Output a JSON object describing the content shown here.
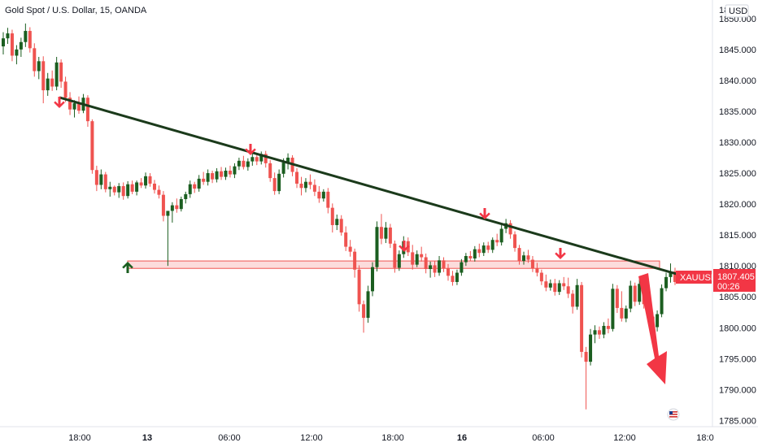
{
  "header": {
    "title": "Gold Spot / U.S. Dollar, 15, OANDA",
    "currency": "USD"
  },
  "price_axis": {
    "top_label": "18",
    "ticks": [
      "1850.000",
      "1845.000",
      "1840.000",
      "1835.000",
      "1830.000",
      "1825.000",
      "1820.000",
      "1815.000",
      "1810.000",
      "1805.000",
      "1800.000",
      "1795.000",
      "1790.000",
      "1785.000"
    ]
  },
  "time_axis": {
    "ticks": [
      "18:00",
      "13",
      "06:00",
      "12:00",
      "18:00",
      "16",
      "06:00",
      "12:00",
      "18:0"
    ]
  },
  "badges": {
    "symbol": "XAUUSD",
    "price": "1807.405",
    "countdown": "00:26"
  },
  "colors": {
    "up": "#26a69a",
    "down": "#ef5350",
    "bull_body": "#1b5e20",
    "trendline": "#1b3a1b",
    "zone": "#f8bcbc",
    "arrow_red": "#f23645",
    "arrow_green": "#1b5e20",
    "badge_red": "#f23645"
  },
  "chart_data": {
    "type": "candlestick",
    "instrument": "XAUUSD",
    "timeframe": "15",
    "ylim": [
      1784,
      1853
    ],
    "x_ticks": [
      "18:00",
      "13",
      "06:00",
      "12:00",
      "18:00",
      "16",
      "06:00",
      "12:00",
      "18:0"
    ],
    "resistance_zone": [
      1809.6,
      1810.8
    ],
    "trendline": {
      "from": {
        "x": "12 16:15",
        "y": 1837.2
      },
      "to": {
        "x": "16 16:00",
        "y": 1808.4
      }
    },
    "last_price": 1807.405,
    "candles": [
      [
        1845.5,
        1847.8,
        1844.2,
        1846.8
      ],
      [
        1846.8,
        1848.5,
        1845.9,
        1847.6
      ],
      [
        1847.6,
        1848.2,
        1843.1,
        1844.0
      ],
      [
        1844.0,
        1845.7,
        1842.6,
        1845.0
      ],
      [
        1845.0,
        1846.9,
        1843.8,
        1846.2
      ],
      [
        1846.2,
        1849.2,
        1845.4,
        1848.0
      ],
      [
        1848.0,
        1848.6,
        1844.5,
        1845.2
      ],
      [
        1845.2,
        1846.0,
        1840.6,
        1841.5
      ],
      [
        1841.5,
        1843.8,
        1840.2,
        1843.1
      ],
      [
        1843.1,
        1843.9,
        1836.3,
        1838.4
      ],
      [
        1838.4,
        1841.2,
        1837.5,
        1840.3
      ],
      [
        1840.3,
        1841.6,
        1838.3,
        1839.0
      ],
      [
        1839.0,
        1843.8,
        1838.4,
        1842.9
      ],
      [
        1842.9,
        1843.4,
        1838.8,
        1839.8
      ],
      [
        1839.8,
        1840.6,
        1836.5,
        1837.2
      ],
      [
        1837.2,
        1838.1,
        1834.4,
        1835.3
      ],
      [
        1835.3,
        1836.8,
        1834.0,
        1836.3
      ],
      [
        1836.3,
        1837.4,
        1834.6,
        1835.1
      ],
      [
        1835.1,
        1837.8,
        1834.7,
        1837.2
      ],
      [
        1837.2,
        1837.6,
        1832.5,
        1833.4
      ],
      [
        1833.4,
        1833.7,
        1824.9,
        1825.5
      ],
      [
        1825.5,
        1826.2,
        1822.1,
        1823.1
      ],
      [
        1823.1,
        1825.6,
        1822.4,
        1824.8
      ],
      [
        1824.8,
        1825.2,
        1821.9,
        1822.4
      ],
      [
        1822.4,
        1823.6,
        1821.2,
        1822.8
      ],
      [
        1822.8,
        1823.0,
        1821.4,
        1821.9
      ],
      [
        1821.9,
        1823.4,
        1821.0,
        1822.9
      ],
      [
        1822.9,
        1823.5,
        1820.7,
        1821.3
      ],
      [
        1821.3,
        1823.7,
        1820.9,
        1823.2
      ],
      [
        1823.2,
        1823.8,
        1821.6,
        1822.0
      ],
      [
        1822.0,
        1823.8,
        1821.4,
        1823.5
      ],
      [
        1823.5,
        1824.2,
        1822.6,
        1823.0
      ],
      [
        1823.0,
        1825.1,
        1822.5,
        1824.5
      ],
      [
        1824.5,
        1825.0,
        1822.8,
        1823.3
      ],
      [
        1823.3,
        1823.9,
        1821.7,
        1822.3
      ],
      [
        1822.3,
        1823.0,
        1820.9,
        1821.5
      ],
      [
        1821.5,
        1822.1,
        1817.2,
        1818.1
      ],
      [
        1818.1,
        1818.5,
        1810.0,
        1818.9
      ],
      [
        1818.9,
        1820.3,
        1817.0,
        1819.8
      ],
      [
        1819.8,
        1820.9,
        1818.6,
        1819.2
      ],
      [
        1819.2,
        1821.2,
        1818.8,
        1820.8
      ],
      [
        1820.8,
        1822.0,
        1820.1,
        1821.6
      ],
      [
        1821.6,
        1823.8,
        1821.0,
        1823.2
      ],
      [
        1823.2,
        1823.6,
        1821.8,
        1822.5
      ],
      [
        1822.5,
        1824.7,
        1822.0,
        1824.1
      ],
      [
        1824.1,
        1825.2,
        1823.1,
        1823.6
      ],
      [
        1823.6,
        1825.6,
        1823.0,
        1825.0
      ],
      [
        1825.0,
        1825.4,
        1823.4,
        1824.0
      ],
      [
        1824.0,
        1825.8,
        1823.5,
        1825.3
      ],
      [
        1825.3,
        1826.0,
        1823.9,
        1824.4
      ],
      [
        1824.4,
        1825.9,
        1823.9,
        1825.4
      ],
      [
        1825.4,
        1826.2,
        1824.3,
        1824.8
      ],
      [
        1824.8,
        1826.6,
        1824.2,
        1826.1
      ],
      [
        1826.1,
        1827.5,
        1825.5,
        1827.0
      ],
      [
        1827.0,
        1827.8,
        1825.6,
        1826.0
      ],
      [
        1826.0,
        1827.4,
        1825.4,
        1826.9
      ],
      [
        1826.9,
        1828.2,
        1826.2,
        1827.6
      ],
      [
        1827.6,
        1828.0,
        1826.3,
        1826.9
      ],
      [
        1826.9,
        1828.5,
        1826.4,
        1828.1
      ],
      [
        1828.1,
        1828.6,
        1825.9,
        1826.6
      ],
      [
        1826.6,
        1827.1,
        1823.6,
        1824.2
      ],
      [
        1824.2,
        1825.1,
        1821.5,
        1822.1
      ],
      [
        1822.1,
        1825.6,
        1821.6,
        1824.9
      ],
      [
        1824.9,
        1827.4,
        1824.3,
        1826.7
      ],
      [
        1826.7,
        1828.2,
        1825.6,
        1827.5
      ],
      [
        1827.5,
        1827.9,
        1824.5,
        1825.2
      ],
      [
        1825.2,
        1825.8,
        1822.6,
        1823.3
      ],
      [
        1823.3,
        1824.4,
        1821.4,
        1822.6
      ],
      [
        1822.6,
        1824.2,
        1821.9,
        1823.6
      ],
      [
        1823.6,
        1824.8,
        1822.4,
        1823.1
      ],
      [
        1823.1,
        1824.0,
        1821.3,
        1822.0
      ],
      [
        1822.0,
        1822.9,
        1820.2,
        1820.9
      ],
      [
        1820.9,
        1822.4,
        1820.4,
        1822.0
      ],
      [
        1822.0,
        1822.6,
        1818.5,
        1819.4
      ],
      [
        1819.4,
        1820.1,
        1815.4,
        1816.6
      ],
      [
        1816.6,
        1818.3,
        1815.8,
        1817.6
      ],
      [
        1817.6,
        1818.2,
        1814.9,
        1815.4
      ],
      [
        1815.4,
        1816.4,
        1812.4,
        1813.1
      ],
      [
        1813.1,
        1814.2,
        1811.5,
        1812.3
      ],
      [
        1812.3,
        1812.8,
        1808.1,
        1809.4
      ],
      [
        1809.4,
        1810.1,
        1802.6,
        1803.8
      ],
      [
        1803.8,
        1804.4,
        1799.2,
        1801.6
      ],
      [
        1801.6,
        1806.8,
        1800.8,
        1805.9
      ],
      [
        1805.9,
        1810.6,
        1805.1,
        1809.8
      ],
      [
        1809.8,
        1817.2,
        1809.1,
        1816.3
      ],
      [
        1816.3,
        1818.4,
        1813.5,
        1814.4
      ],
      [
        1814.4,
        1817.1,
        1813.7,
        1816.2
      ],
      [
        1816.2,
        1816.8,
        1812.9,
        1813.6
      ],
      [
        1813.6,
        1814.1,
        1808.9,
        1809.7
      ],
      [
        1809.7,
        1812.5,
        1809.2,
        1811.9
      ],
      [
        1811.9,
        1814.8,
        1811.3,
        1814.0
      ],
      [
        1814.0,
        1814.6,
        1811.6,
        1812.2
      ],
      [
        1812.2,
        1813.4,
        1809.4,
        1810.2
      ],
      [
        1810.2,
        1812.5,
        1809.8,
        1811.9
      ],
      [
        1811.9,
        1813.1,
        1810.7,
        1811.4
      ],
      [
        1811.4,
        1812.0,
        1808.8,
        1809.5
      ],
      [
        1809.5,
        1810.7,
        1808.1,
        1810.1
      ],
      [
        1810.1,
        1810.8,
        1808.2,
        1808.9
      ],
      [
        1808.9,
        1811.6,
        1808.4,
        1810.9
      ],
      [
        1810.9,
        1811.4,
        1809.0,
        1809.6
      ],
      [
        1809.6,
        1810.3,
        1807.6,
        1808.4
      ],
      [
        1808.4,
        1809.2,
        1806.8,
        1807.4
      ],
      [
        1807.4,
        1809.4,
        1806.9,
        1808.9
      ],
      [
        1808.9,
        1811.1,
        1808.4,
        1810.6
      ],
      [
        1810.6,
        1812.1,
        1810.0,
        1811.6
      ],
      [
        1811.6,
        1812.4,
        1810.8,
        1811.2
      ],
      [
        1811.2,
        1813.2,
        1810.7,
        1812.7
      ],
      [
        1812.7,
        1813.6,
        1811.4,
        1812.1
      ],
      [
        1812.1,
        1813.8,
        1811.6,
        1813.3
      ],
      [
        1813.3,
        1813.9,
        1812.1,
        1812.6
      ],
      [
        1812.6,
        1814.6,
        1812.1,
        1814.2
      ],
      [
        1814.2,
        1815.2,
        1813.2,
        1813.8
      ],
      [
        1813.8,
        1816.6,
        1813.3,
        1816.0
      ],
      [
        1816.0,
        1817.6,
        1815.3,
        1816.9
      ],
      [
        1816.9,
        1817.4,
        1814.4,
        1815.1
      ],
      [
        1815.1,
        1815.6,
        1812.3,
        1812.9
      ],
      [
        1812.9,
        1813.4,
        1810.2,
        1810.8
      ],
      [
        1810.8,
        1812.3,
        1810.2,
        1811.7
      ],
      [
        1811.7,
        1812.6,
        1810.5,
        1811.0
      ],
      [
        1811.0,
        1811.6,
        1809.0,
        1809.6
      ],
      [
        1809.6,
        1810.5,
        1808.3,
        1808.9
      ],
      [
        1808.9,
        1809.4,
        1806.9,
        1807.5
      ],
      [
        1807.5,
        1808.6,
        1805.9,
        1806.5
      ],
      [
        1806.5,
        1807.8,
        1806.0,
        1807.2
      ],
      [
        1807.2,
        1807.9,
        1805.2,
        1805.8
      ],
      [
        1805.8,
        1807.7,
        1805.3,
        1807.2
      ],
      [
        1807.2,
        1808.2,
        1806.1,
        1806.7
      ],
      [
        1806.7,
        1808.1,
        1804.8,
        1805.5
      ],
      [
        1805.5,
        1806.1,
        1802.3,
        1803.4
      ],
      [
        1803.4,
        1807.9,
        1802.9,
        1806.9
      ],
      [
        1806.9,
        1807.4,
        1795.2,
        1796.1
      ],
      [
        1796.1,
        1796.9,
        1786.8,
        1794.5
      ],
      [
        1794.5,
        1799.8,
        1793.9,
        1798.9
      ],
      [
        1798.9,
        1800.4,
        1797.5,
        1799.6
      ],
      [
        1799.6,
        1800.2,
        1798.2,
        1798.9
      ],
      [
        1798.9,
        1800.9,
        1798.3,
        1800.3
      ],
      [
        1800.3,
        1801.5,
        1799.1,
        1799.8
      ],
      [
        1799.8,
        1807.1,
        1799.4,
        1806.3
      ],
      [
        1806.3,
        1806.9,
        1802.4,
        1803.2
      ],
      [
        1803.2,
        1805.9,
        1801.0,
        1801.5
      ],
      [
        1801.5,
        1803.6,
        1800.9,
        1803.1
      ],
      [
        1803.1,
        1807.6,
        1802.5,
        1806.8
      ],
      [
        1806.8,
        1807.3,
        1803.5,
        1804.2
      ],
      [
        1804.2,
        1807.8,
        1803.7,
        1807.1
      ],
      [
        1807.1,
        1807.6,
        1803.1,
        1803.8
      ],
      [
        1803.8,
        1804.3,
        1801.2,
        1801.8
      ],
      [
        1801.8,
        1802.5,
        1798.1,
        1800.1
      ],
      [
        1800.1,
        1802.8,
        1799.4,
        1802.2
      ],
      [
        1802.2,
        1807.0,
        1801.7,
        1806.4
      ],
      [
        1806.4,
        1808.9,
        1805.9,
        1808.2
      ],
      [
        1808.2,
        1810.4,
        1807.3,
        1809.1
      ],
      [
        1809.1,
        1809.7,
        1806.9,
        1807.4
      ]
    ]
  }
}
